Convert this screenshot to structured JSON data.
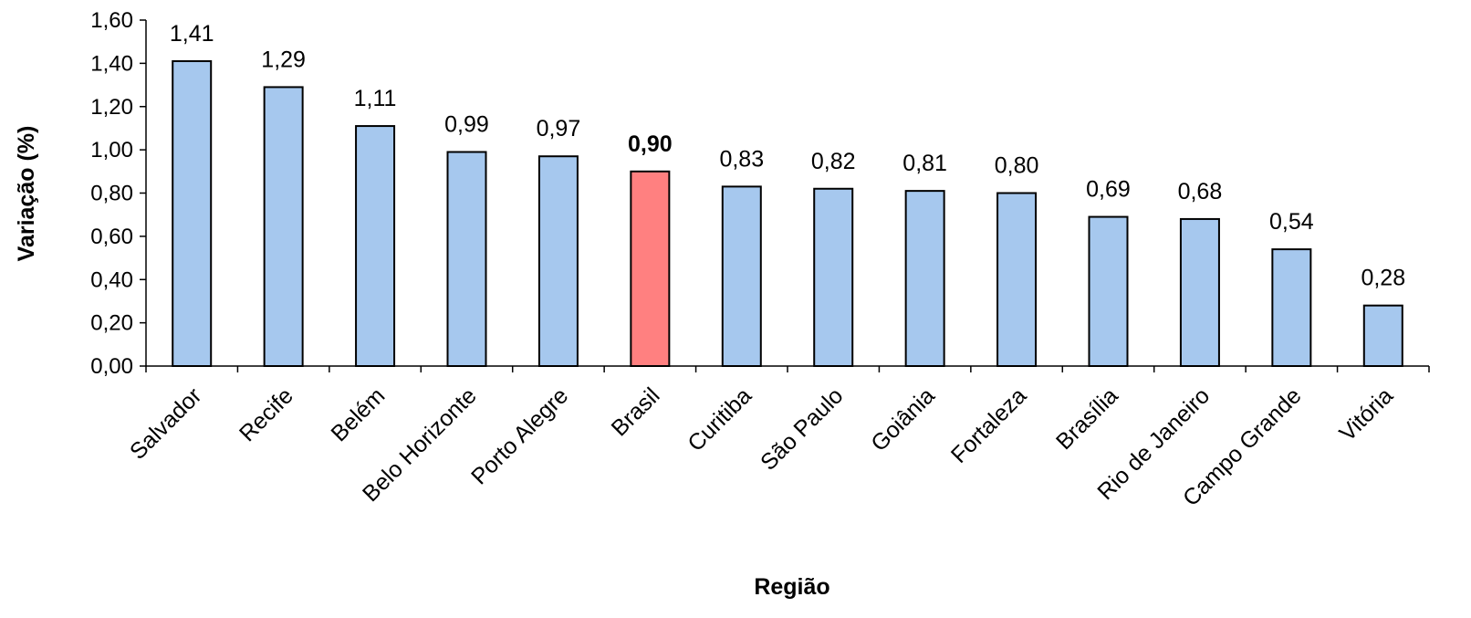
{
  "chart_data": {
    "type": "bar",
    "title": "",
    "xlabel": "Região",
    "ylabel": "Variação (%)",
    "ylim": [
      0,
      1.6
    ],
    "y_ticks": [
      "0,00",
      "0,20",
      "0,40",
      "0,60",
      "0,80",
      "1,00",
      "1,20",
      "1,40",
      "1,60"
    ],
    "grid": false,
    "legend": "none",
    "categories": [
      "Salvador",
      "Recife",
      "Belém",
      "Belo Horizonte",
      "Porto Alegre",
      "Brasil",
      "Curitiba",
      "São Paulo",
      "Goiânia",
      "Fortaleza",
      "Brasília",
      "Rio de Janeiro",
      "Campo Grande",
      "Vitória"
    ],
    "values": [
      1.41,
      1.29,
      1.11,
      0.99,
      0.97,
      0.9,
      0.83,
      0.82,
      0.81,
      0.8,
      0.69,
      0.68,
      0.54,
      0.28
    ],
    "value_labels": [
      "1,41",
      "1,29",
      "1,11",
      "0,99",
      "0,97",
      "0,90",
      "0,83",
      "0,82",
      "0,81",
      "0,80",
      "0,69",
      "0,68",
      "0,54",
      "0,28"
    ],
    "highlight_category": "Brasil",
    "colors": {
      "bar": "#a6c8ee",
      "highlight_bar": "#ff8080",
      "outline": "#000000"
    }
  }
}
